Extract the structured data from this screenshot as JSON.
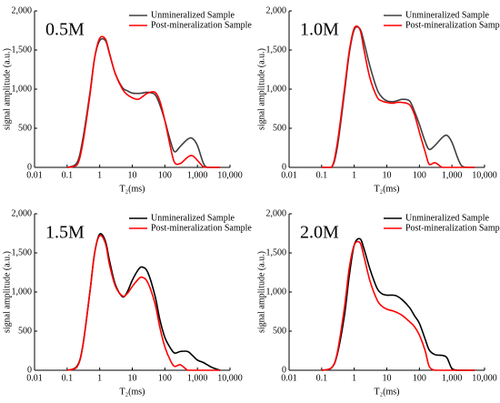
{
  "chart_data": [
    {
      "type": "line",
      "annotation": "0.5M",
      "xlabel": "T₂(ms)",
      "ylabel": "signal amplitude (a.u.)",
      "xscale": "log",
      "legend": "upper right",
      "xlim": [
        0.01,
        10000
      ],
      "xticks": [
        0.01,
        0.1,
        1,
        10,
        100,
        {
          "value": 1000,
          "label": "1,000"
        },
        {
          "value": 10000,
          "label": "10,000"
        }
      ],
      "ylim": [
        0,
        2000
      ],
      "yticks": [
        0,
        500,
        {
          "value": 1000,
          "label": "1,000"
        },
        {
          "value": 1500,
          "label": "1,500"
        },
        {
          "value": 2000,
          "label": "2,000"
        }
      ],
      "x": [
        0.1,
        0.2,
        0.3,
        0.5,
        0.7,
        1,
        1.5,
        2,
        3,
        5,
        7,
        10,
        15,
        20,
        30,
        50,
        70,
        100,
        150,
        200,
        300,
        500,
        700,
        1000,
        1500,
        2000,
        3000,
        5000
      ],
      "series": [
        {
          "name": "Unmineralized Sample",
          "color": "#404040",
          "values": [
            0,
            60,
            350,
            950,
            1400,
            1620,
            1620,
            1450,
            1200,
            1020,
            980,
            950,
            945,
            950,
            960,
            930,
            800,
            600,
            330,
            200,
            270,
            360,
            370,
            280,
            60,
            0,
            0,
            0
          ]
        },
        {
          "name": "Post-mineralization Sample",
          "color": "#ff0000",
          "values": [
            0,
            30,
            300,
            920,
            1400,
            1650,
            1640,
            1460,
            1200,
            1000,
            930,
            890,
            870,
            900,
            950,
            960,
            850,
            600,
            250,
            60,
            50,
            130,
            150,
            90,
            10,
            0,
            0,
            0
          ]
        }
      ]
    },
    {
      "type": "line",
      "annotation": "1.0M",
      "xlabel": "T₂(ms)",
      "ylabel": "signal amplitude (a.u.)",
      "xscale": "log",
      "legend": "upper right",
      "xlim": [
        0.01,
        10000
      ],
      "xticks": [
        0.01,
        0.1,
        1,
        10,
        100,
        {
          "value": 1000,
          "label": "1,000"
        },
        {
          "value": 10000,
          "label": "10,000"
        }
      ],
      "ylim": [
        0,
        2000
      ],
      "yticks": [
        0,
        500,
        {
          "value": 1000,
          "label": "1,000"
        },
        {
          "value": 1500,
          "label": "1,500"
        },
        {
          "value": 2000,
          "label": "2,000"
        }
      ],
      "x": [
        0.1,
        0.2,
        0.3,
        0.5,
        0.7,
        1,
        1.5,
        2,
        3,
        5,
        7,
        10,
        15,
        20,
        30,
        50,
        70,
        100,
        150,
        200,
        300,
        500,
        700,
        1000,
        1500,
        2000,
        3000,
        5000
      ],
      "series": [
        {
          "name": "Unmineralized Sample",
          "color": "#404040",
          "values": [
            0,
            0,
            250,
            950,
            1450,
            1760,
            1770,
            1600,
            1300,
            1000,
            900,
            850,
            840,
            850,
            870,
            850,
            720,
            550,
            330,
            230,
            280,
            380,
            410,
            320,
            120,
            20,
            0,
            0
          ]
        },
        {
          "name": "Post-mineralization Sample",
          "color": "#ff0000",
          "values": [
            0,
            0,
            300,
            1000,
            1480,
            1780,
            1760,
            1500,
            1150,
            900,
            850,
            830,
            820,
            830,
            830,
            800,
            680,
            450,
            200,
            40,
            60,
            0,
            0,
            0,
            0,
            0,
            0,
            0
          ]
        }
      ]
    },
    {
      "type": "line",
      "annotation": "1.5M",
      "xlabel": "T₂(ms)",
      "ylabel": "signal amplitude (a.u.)",
      "xscale": "log",
      "legend": "upper right",
      "xlim": [
        0.01,
        10000
      ],
      "xticks": [
        0.01,
        0.1,
        1,
        10,
        100,
        {
          "value": 1000,
          "label": "1,000"
        },
        {
          "value": 10000,
          "label": "10,000"
        }
      ],
      "ylim": [
        0,
        2000
      ],
      "yticks": [
        0,
        500,
        {
          "value": 1000,
          "label": "1,000"
        },
        {
          "value": 1500,
          "label": "1,500"
        },
        {
          "value": 2000,
          "label": "2,000"
        }
      ],
      "x": [
        0.1,
        0.2,
        0.3,
        0.5,
        0.7,
        1,
        1.5,
        2,
        3,
        5,
        7,
        10,
        15,
        20,
        30,
        50,
        70,
        100,
        150,
        200,
        300,
        500,
        700,
        1000,
        1500,
        2000,
        3000,
        5000
      ],
      "series": [
        {
          "name": "Unmineralized Sample",
          "color": "#000000",
          "values": [
            0,
            50,
            300,
            1000,
            1500,
            1740,
            1650,
            1400,
            1100,
            940,
            1000,
            1150,
            1280,
            1320,
            1250,
            950,
            650,
            420,
            280,
            220,
            240,
            240,
            190,
            130,
            100,
            70,
            30,
            0
          ]
        },
        {
          "name": "Post-mineralization Sample",
          "color": "#ff0000",
          "values": [
            0,
            40,
            300,
            1000,
            1500,
            1720,
            1620,
            1350,
            1080,
            950,
            980,
            1070,
            1160,
            1190,
            1120,
            850,
            550,
            300,
            120,
            50,
            70,
            0,
            0,
            0,
            0,
            0,
            0,
            0
          ]
        }
      ]
    },
    {
      "type": "line",
      "annotation": "2.0M",
      "xlabel": "T₂(ms)",
      "ylabel": "signal amplitude (a.u.)",
      "xscale": "log",
      "legend": "upper right",
      "xlim": [
        0.01,
        10000
      ],
      "xticks": [
        0.01,
        0.1,
        1,
        10,
        100,
        {
          "value": 1000,
          "label": "1,000"
        },
        {
          "value": 10000,
          "label": "10,000"
        }
      ],
      "ylim": [
        0,
        2000
      ],
      "yticks": [
        0,
        500,
        {
          "value": 1000,
          "label": "1,000"
        },
        {
          "value": 1500,
          "label": "1,500"
        },
        {
          "value": 2000,
          "label": "2,000"
        }
      ],
      "x": [
        0.1,
        0.2,
        0.3,
        0.5,
        0.7,
        1,
        1.5,
        2,
        3,
        5,
        7,
        10,
        15,
        20,
        30,
        50,
        70,
        100,
        150,
        200,
        300,
        500,
        700,
        1000,
        1500,
        2000,
        3000,
        5000
      ],
      "series": [
        {
          "name": "Unmineralized Sample",
          "color": "#000000",
          "values": [
            0,
            30,
            200,
            700,
            1200,
            1600,
            1680,
            1550,
            1300,
            1050,
            980,
            960,
            960,
            950,
            900,
            800,
            700,
            600,
            400,
            260,
            200,
            190,
            160,
            20,
            0,
            0,
            0,
            0
          ]
        },
        {
          "name": "Post-mineralization Sample",
          "color": "#ff0000",
          "values": [
            0,
            30,
            220,
            800,
            1300,
            1600,
            1630,
            1450,
            1150,
            900,
            820,
            780,
            760,
            740,
            700,
            620,
            560,
            450,
            250,
            50,
            0,
            0,
            0,
            0,
            0,
            0,
            0,
            0
          ]
        }
      ]
    }
  ]
}
